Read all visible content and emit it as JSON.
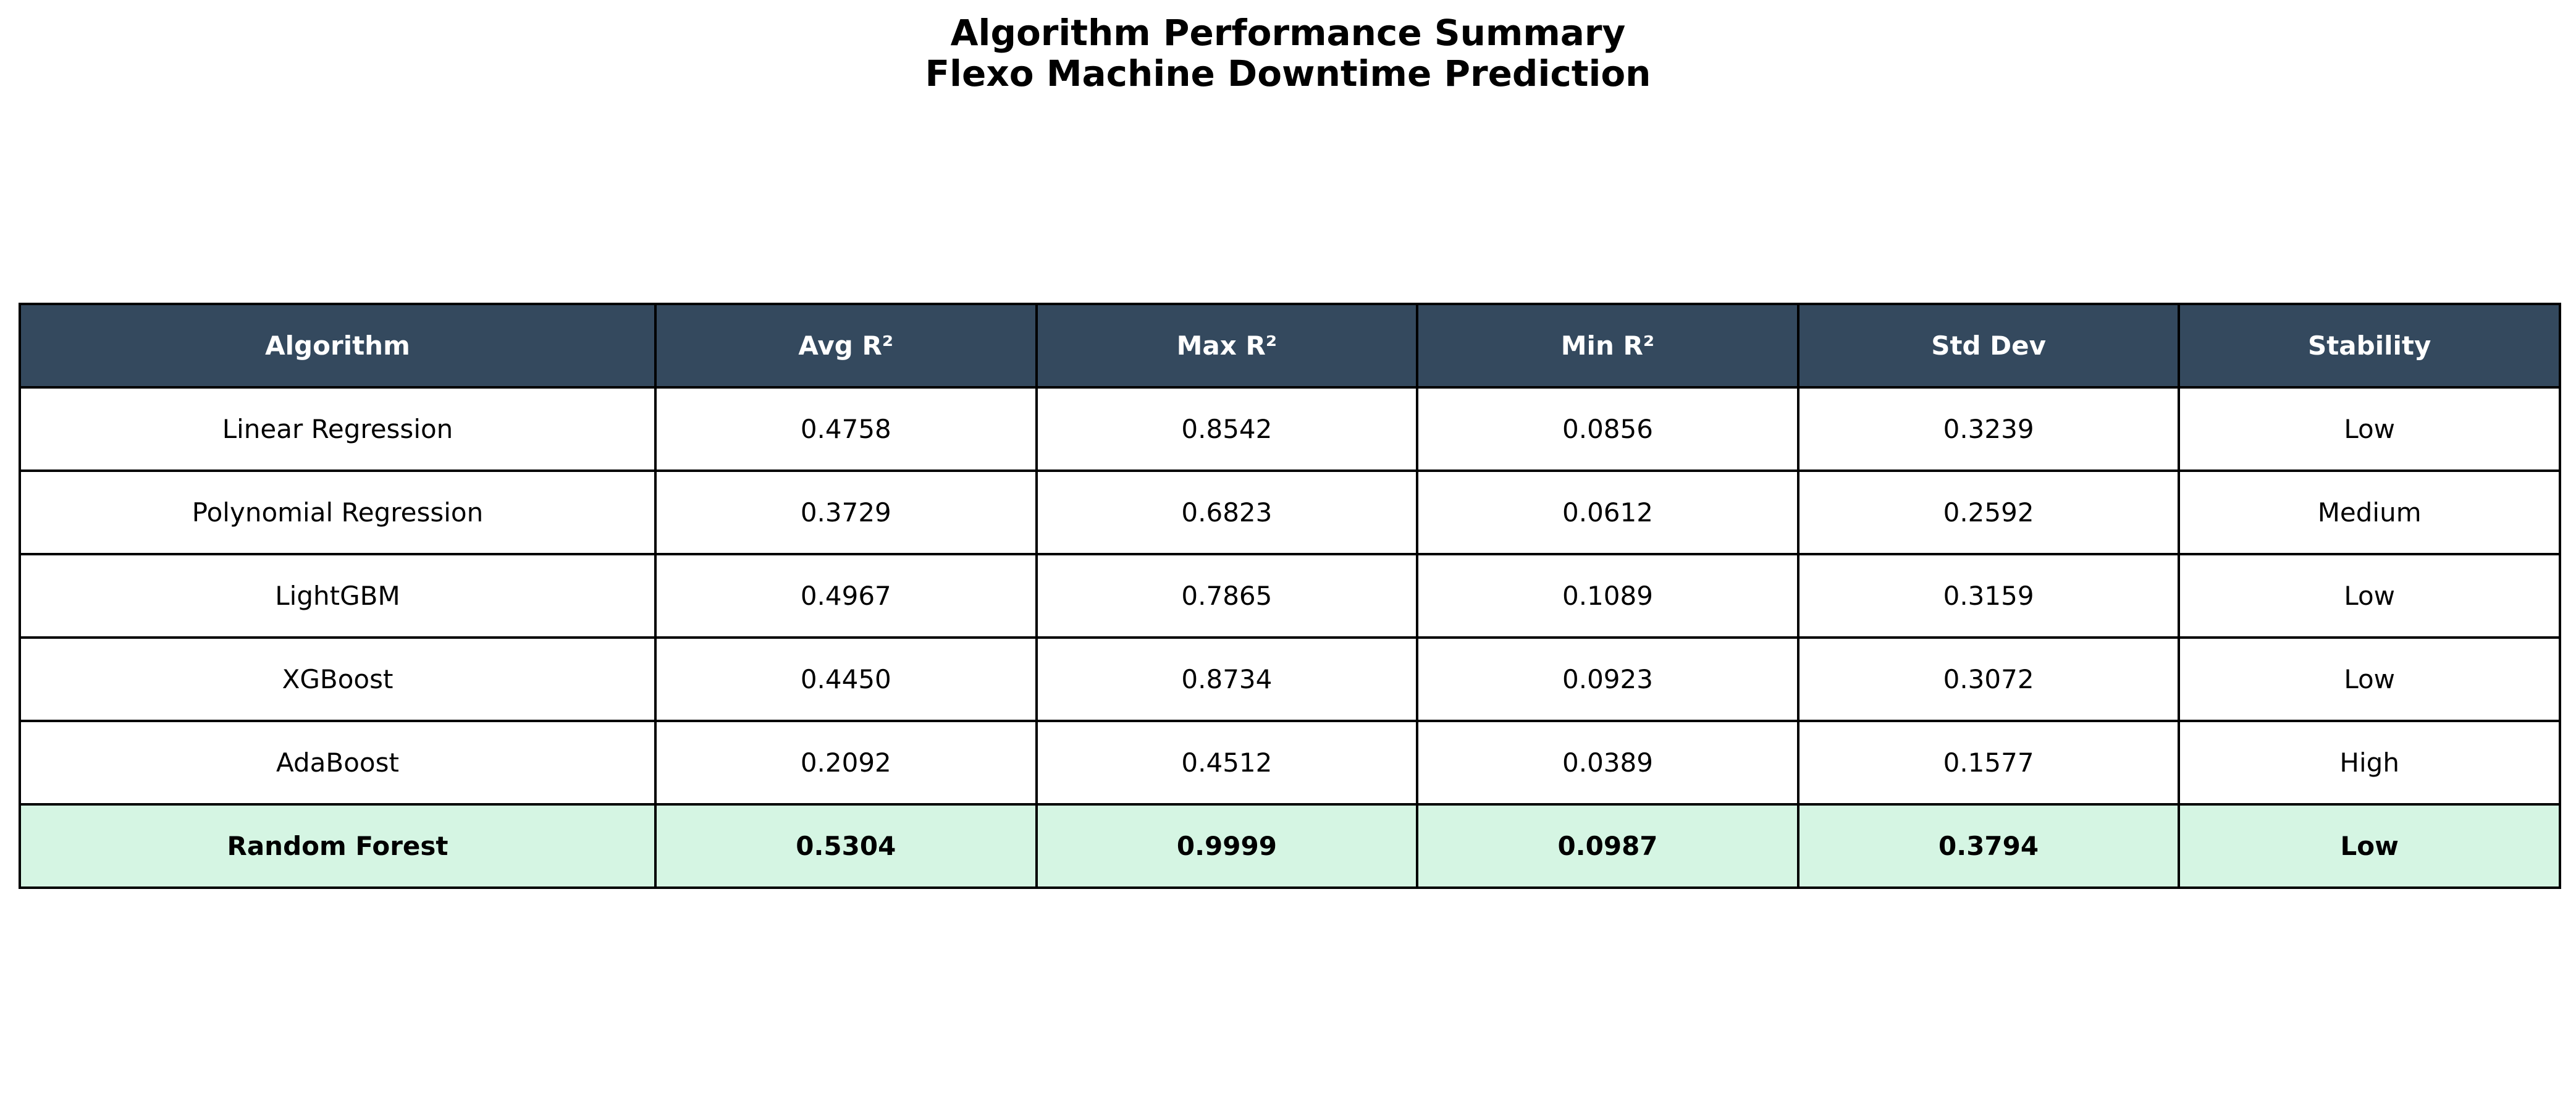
{
  "chart_data": {
    "type": "table",
    "title_lines": [
      "Algorithm Performance Summary",
      "Flexo Machine Downtime Prediction"
    ],
    "columns": [
      "Algorithm",
      "Avg R²",
      "Max R²",
      "Min R²",
      "Std Dev",
      "Stability"
    ],
    "rows": [
      [
        "Linear Regression",
        "0.4758",
        "0.8542",
        "0.0856",
        "0.3239",
        "Low"
      ],
      [
        "Polynomial Regression",
        "0.3729",
        "0.6823",
        "0.0612",
        "0.2592",
        "Medium"
      ],
      [
        "LightGBM",
        "0.4967",
        "0.7865",
        "0.1089",
        "0.3159",
        "Low"
      ],
      [
        "XGBoost",
        "0.4450",
        "0.8734",
        "0.0923",
        "0.3072",
        "Low"
      ],
      [
        "AdaBoost",
        "0.2092",
        "0.4512",
        "0.0389",
        "0.1577",
        "High"
      ],
      [
        "Random Forest",
        "0.5304",
        "0.9999",
        "0.0987",
        "0.3794",
        "Low"
      ]
    ],
    "highlighted_row": "Random Forest",
    "colors": {
      "header_bg": "#34495e",
      "header_text": "#ffffff",
      "row_bg": "#ffffff",
      "highlight_bg": "#d5f5e3",
      "border": "#000000"
    }
  }
}
